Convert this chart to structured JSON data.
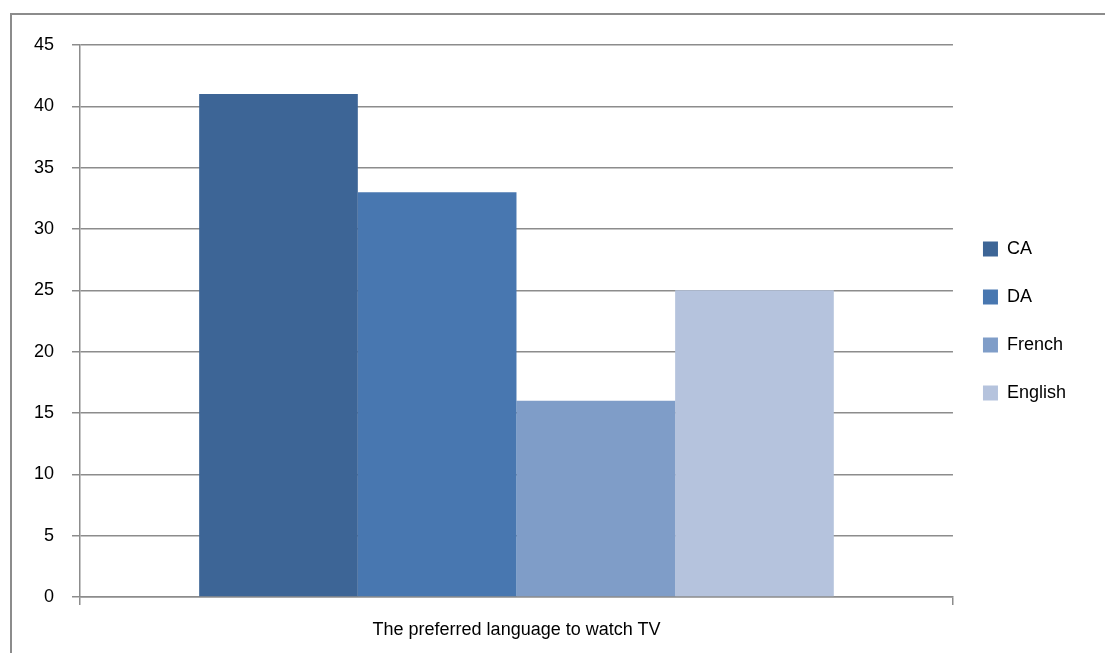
{
  "chart_data": {
    "type": "bar",
    "categories": [
      "The preferred language to watch TV"
    ],
    "series": [
      {
        "name": "CA",
        "color": "#3d6596",
        "values": [
          41
        ]
      },
      {
        "name": "DA",
        "color": "#4877b0",
        "values": [
          33
        ]
      },
      {
        "name": "French",
        "color": "#7f9dc8",
        "values": [
          16
        ]
      },
      {
        "name": "English",
        "color": "#b5c3dd",
        "values": [
          25
        ]
      }
    ],
    "ylim": [
      0,
      45
    ],
    "yticks": [
      0,
      5,
      10,
      15,
      20,
      25,
      30,
      35,
      40,
      45
    ],
    "grid": "y",
    "legend": "right"
  }
}
